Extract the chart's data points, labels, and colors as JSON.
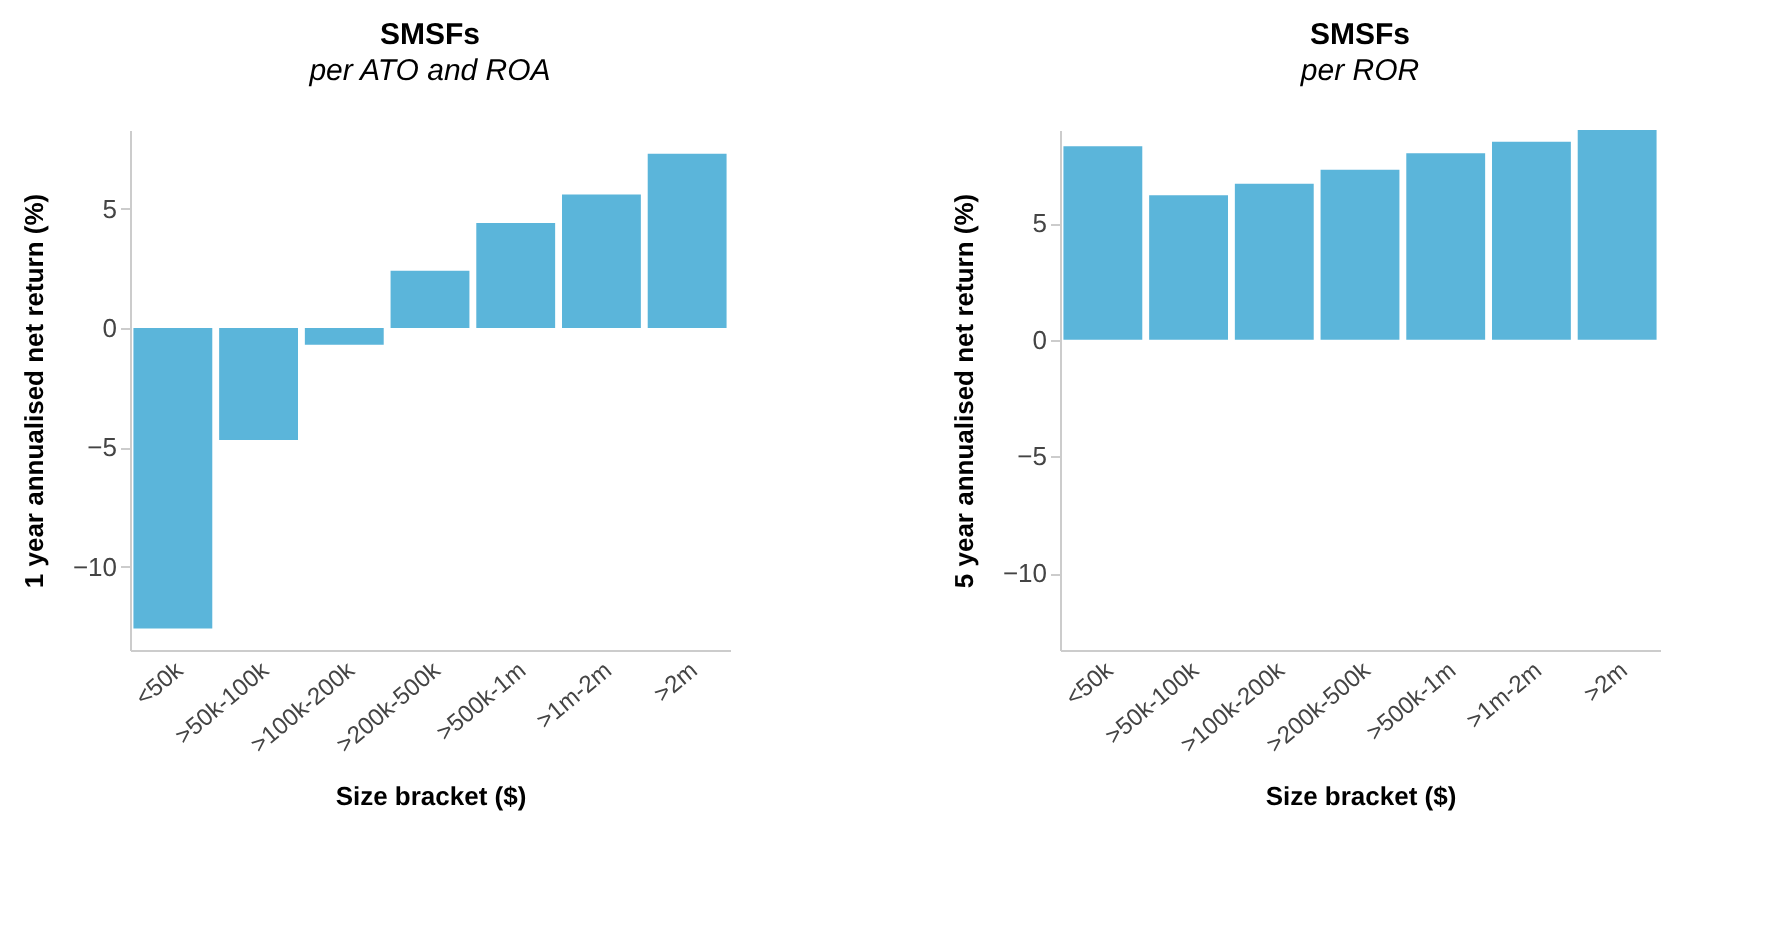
{
  "chart_data": [
    {
      "type": "bar",
      "title": "SMSFs",
      "subtitle": "per ATO and ROA",
      "xlabel": "Size bracket ($)",
      "ylabel": "1 year annualised net return (%)",
      "categories": [
        "<50k",
        ">50k-100k",
        ">100k-200k",
        ">200k-500k",
        ">500k-1m",
        ">1m-2m",
        ">2m"
      ],
      "values": [
        -12.6,
        -4.7,
        -0.7,
        2.4,
        4.4,
        5.6,
        7.3
      ],
      "color": "#5bb5da",
      "ylim": [
        -13.5,
        8.3
      ],
      "yticks": [
        -10,
        -5,
        0,
        5
      ],
      "grid": false
    },
    {
      "type": "bar",
      "title": "SMSFs",
      "subtitle": "per ROR",
      "xlabel": "Size bracket ($)",
      "ylabel": "5 year annualised net return (%)",
      "categories": [
        "<50k",
        ">50k-100k",
        ">100k-200k",
        ">200k-500k",
        ">500k-1m",
        ">1m-2m",
        ">2m"
      ],
      "values": [
        8.3,
        6.2,
        6.7,
        7.3,
        8.0,
        8.5,
        9.0
      ],
      "color": "#5bb5da",
      "ylim": [
        -13.3,
        9.0
      ],
      "yticks": [
        -10,
        -5,
        0,
        5
      ],
      "grid": false
    }
  ]
}
